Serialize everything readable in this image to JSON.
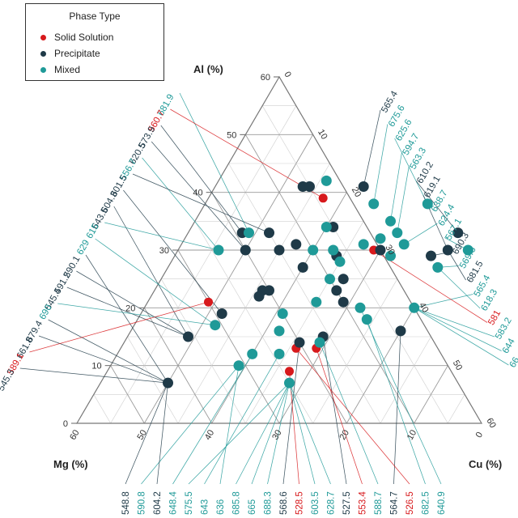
{
  "chart_data": {
    "type": "scatter",
    "subtype": "ternary",
    "axes": {
      "al": {
        "label": "Al (%)",
        "range": [
          0,
          60
        ],
        "ticks": [
          0,
          10,
          20,
          30,
          40,
          50,
          60
        ]
      },
      "cu": {
        "label": "Cu (%)",
        "range": [
          0,
          60
        ],
        "ticks": [
          0,
          10,
          20,
          30,
          40,
          50,
          60
        ]
      },
      "mg": {
        "label": "Mg (%)",
        "range": [
          0,
          60
        ],
        "ticks": [
          0,
          10,
          20,
          30,
          40,
          50,
          60
        ]
      }
    },
    "grid": true,
    "legend": {
      "title": "Phase Type",
      "placement": "top-left",
      "entries": [
        {
          "name": "Solid Solution",
          "color": "#d7191c"
        },
        {
          "name": "Precipitate",
          "color": "#1f3a48"
        },
        {
          "name": "Mixed",
          "color": "#1f9a98"
        }
      ]
    },
    "colors": {
      "Solid Solution": "#d7191c",
      "Precipitate": "#1f3a48",
      "Mixed": "#1f9a98"
    },
    "points": [
      {
        "al": 39,
        "cu": 17,
        "phase": "Solid Solution"
      },
      {
        "al": 30,
        "cu": 29,
        "phase": "Solid Solution"
      },
      {
        "al": 21,
        "cu": 9,
        "phase": "Solid Solution"
      },
      {
        "al": 13,
        "cu": 26,
        "phase": "Solid Solution"
      },
      {
        "al": 13,
        "cu": 29,
        "phase": "Solid Solution"
      },
      {
        "al": 9,
        "cu": 27,
        "phase": "Solid Solution"
      },
      {
        "al": 41,
        "cu": 13,
        "phase": "Precipitate"
      },
      {
        "al": 41,
        "cu": 14,
        "phase": "Precipitate"
      },
      {
        "al": 41,
        "cu": 22,
        "phase": "Precipitate"
      },
      {
        "al": 34,
        "cu": 21,
        "phase": "Precipitate"
      },
      {
        "al": 33,
        "cu": 8,
        "phase": "Precipitate"
      },
      {
        "al": 33,
        "cu": 12,
        "phase": "Precipitate"
      },
      {
        "al": 33,
        "cu": 40,
        "phase": "Precipitate"
      },
      {
        "al": 31,
        "cu": 17,
        "phase": "Precipitate"
      },
      {
        "al": 30,
        "cu": 10,
        "phase": "Precipitate"
      },
      {
        "al": 30,
        "cu": 15,
        "phase": "Precipitate"
      },
      {
        "al": 30,
        "cu": 30,
        "phase": "Precipitate"
      },
      {
        "al": 30,
        "cu": 40,
        "phase": "Precipitate"
      },
      {
        "al": 29,
        "cu": 38,
        "phase": "Precipitate"
      },
      {
        "al": 29,
        "cu": 24,
        "phase": "Precipitate"
      },
      {
        "al": 27,
        "cu": 20,
        "phase": "Precipitate"
      },
      {
        "al": 25,
        "cu": 27,
        "phase": "Precipitate"
      },
      {
        "al": 23,
        "cu": 16,
        "phase": "Precipitate"
      },
      {
        "al": 23,
        "cu": 17,
        "phase": "Precipitate"
      },
      {
        "al": 23,
        "cu": 27,
        "phase": "Precipitate"
      },
      {
        "al": 22,
        "cu": 16,
        "phase": "Precipitate"
      },
      {
        "al": 21,
        "cu": 29,
        "phase": "Precipitate"
      },
      {
        "al": 19,
        "cu": 12,
        "phase": "Precipitate"
      },
      {
        "al": 16,
        "cu": 40,
        "phase": "Precipitate"
      },
      {
        "al": 15,
        "cu": 29,
        "phase": "Precipitate"
      },
      {
        "al": 15,
        "cu": 9,
        "phase": "Precipitate"
      },
      {
        "al": 14,
        "cu": 26,
        "phase": "Precipitate"
      },
      {
        "al": 7,
        "cu": 10,
        "phase": "Precipitate"
      },
      {
        "al": 42,
        "cu": 16,
        "phase": "Mixed"
      },
      {
        "al": 38,
        "cu": 25,
        "phase": "Mixed"
      },
      {
        "al": 38,
        "cu": 33,
        "phase": "Mixed"
      },
      {
        "al": 35,
        "cu": 29,
        "phase": "Mixed"
      },
      {
        "al": 34,
        "cu": 20,
        "phase": "Mixed"
      },
      {
        "al": 33,
        "cu": 31,
        "phase": "Mixed"
      },
      {
        "al": 33,
        "cu": 9,
        "phase": "Mixed"
      },
      {
        "al": 32,
        "cu": 29,
        "phase": "Mixed"
      },
      {
        "al": 31,
        "cu": 33,
        "phase": "Mixed"
      },
      {
        "al": 31,
        "cu": 27,
        "phase": "Mixed"
      },
      {
        "al": 30,
        "cu": 20,
        "phase": "Mixed"
      },
      {
        "al": 30,
        "cu": 6,
        "phase": "Mixed"
      },
      {
        "al": 30,
        "cu": 23,
        "phase": "Mixed"
      },
      {
        "al": 30,
        "cu": 43,
        "phase": "Mixed"
      },
      {
        "al": 29,
        "cu": 32,
        "phase": "Mixed"
      },
      {
        "al": 28,
        "cu": 25,
        "phase": "Mixed"
      },
      {
        "al": 27,
        "cu": 40,
        "phase": "Mixed"
      },
      {
        "al": 25,
        "cu": 25,
        "phase": "Mixed"
      },
      {
        "al": 21,
        "cu": 25,
        "phase": "Mixed"
      },
      {
        "al": 20,
        "cu": 32,
        "phase": "Mixed"
      },
      {
        "al": 18,
        "cu": 34,
        "phase": "Mixed"
      },
      {
        "al": 19,
        "cu": 21,
        "phase": "Mixed"
      },
      {
        "al": 17,
        "cu": 12,
        "phase": "Mixed"
      },
      {
        "al": 16,
        "cu": 22,
        "phase": "Mixed"
      },
      {
        "al": 14,
        "cu": 29,
        "phase": "Mixed"
      },
      {
        "al": 12,
        "cu": 24,
        "phase": "Mixed"
      },
      {
        "al": 12,
        "cu": 20,
        "phase": "Mixed"
      },
      {
        "al": 10,
        "cu": 19,
        "phase": "Mixed"
      },
      {
        "al": 7,
        "cu": 28,
        "phase": "Mixed"
      },
      {
        "al": 20,
        "cu": 40,
        "phase": "Mixed"
      }
    ],
    "callouts": {
      "left": [
        {
          "label": "681.9",
          "phase": "Mixed"
        },
        {
          "label": "560.7",
          "phase": "Solid Solution"
        },
        {
          "label": "573.9",
          "phase": "Precipitate"
        },
        {
          "label": "620.5",
          "phase": "Precipitate"
        },
        {
          "label": "556.7",
          "phase": "Mixed"
        },
        {
          "label": "601.5",
          "phase": "Precipitate"
        },
        {
          "label": "604.3",
          "phase": "Precipitate"
        },
        {
          "label": "643.5",
          "phase": "Precipitate"
        },
        {
          "label": "615",
          "phase": "Mixed"
        },
        {
          "label": "629",
          "phase": "Mixed"
        },
        {
          "label": "590.1",
          "phase": "Precipitate"
        },
        {
          "label": "591.2",
          "phase": "Precipitate"
        },
        {
          "label": "545.4",
          "phase": "Precipitate"
        },
        {
          "label": "690",
          "phase": "Mixed"
        },
        {
          "label": "679.4",
          "phase": "Precipitate"
        },
        {
          "label": "661.8",
          "phase": "Precipitate"
        },
        {
          "label": "589.1",
          "phase": "Solid Solution"
        },
        {
          "label": "545.3",
          "phase": "Precipitate"
        }
      ],
      "right": [
        {
          "label": "565.4",
          "phase": "Precipitate"
        },
        {
          "label": "675.6",
          "phase": "Mixed"
        },
        {
          "label": "625.6",
          "phase": "Mixed"
        },
        {
          "label": "594.7",
          "phase": "Mixed"
        },
        {
          "label": "563.3",
          "phase": "Mixed"
        },
        {
          "label": "610.2",
          "phase": "Precipitate"
        },
        {
          "label": "619.1",
          "phase": "Precipitate"
        },
        {
          "label": "638.7",
          "phase": "Mixed"
        },
        {
          "label": "624.4",
          "phase": "Mixed"
        },
        {
          "label": "567.1",
          "phase": "Mixed"
        },
        {
          "label": "690.3",
          "phase": "Precipitate"
        },
        {
          "label": "569.6",
          "phase": "Mixed"
        },
        {
          "label": "681.5",
          "phase": "Precipitate"
        },
        {
          "label": "565.4",
          "phase": "Mixed"
        },
        {
          "label": "618.3",
          "phase": "Mixed"
        },
        {
          "label": "581",
          "phase": "Solid Solution"
        },
        {
          "label": "583.2",
          "phase": "Mixed"
        },
        {
          "label": "644",
          "phase": "Mixed"
        },
        {
          "label": "66",
          "phase": "Mixed"
        }
      ],
      "bottom": [
        {
          "label": "548.8",
          "phase": "Precipitate"
        },
        {
          "label": "590.8",
          "phase": "Mixed"
        },
        {
          "label": "604.2",
          "phase": "Precipitate"
        },
        {
          "label": "648.4",
          "phase": "Mixed"
        },
        {
          "label": "575.5",
          "phase": "Mixed"
        },
        {
          "label": "643",
          "phase": "Mixed"
        },
        {
          "label": "636",
          "phase": "Mixed"
        },
        {
          "label": "685.8",
          "phase": "Mixed"
        },
        {
          "label": "665",
          "phase": "Mixed"
        },
        {
          "label": "688.3",
          "phase": "Mixed"
        },
        {
          "label": "568.6",
          "phase": "Precipitate"
        },
        {
          "label": "528.5",
          "phase": "Solid Solution"
        },
        {
          "label": "603.5",
          "phase": "Mixed"
        },
        {
          "label": "628.7",
          "phase": "Mixed"
        },
        {
          "label": "527.5",
          "phase": "Precipitate"
        },
        {
          "label": "553.4",
          "phase": "Solid Solution"
        },
        {
          "label": "588.7",
          "phase": "Mixed"
        },
        {
          "label": "564.7",
          "phase": "Precipitate"
        },
        {
          "label": "526.5",
          "phase": "Solid Solution"
        },
        {
          "label": "682.5",
          "phase": "Mixed"
        },
        {
          "label": "640.9",
          "phase": "Mixed"
        }
      ]
    }
  }
}
